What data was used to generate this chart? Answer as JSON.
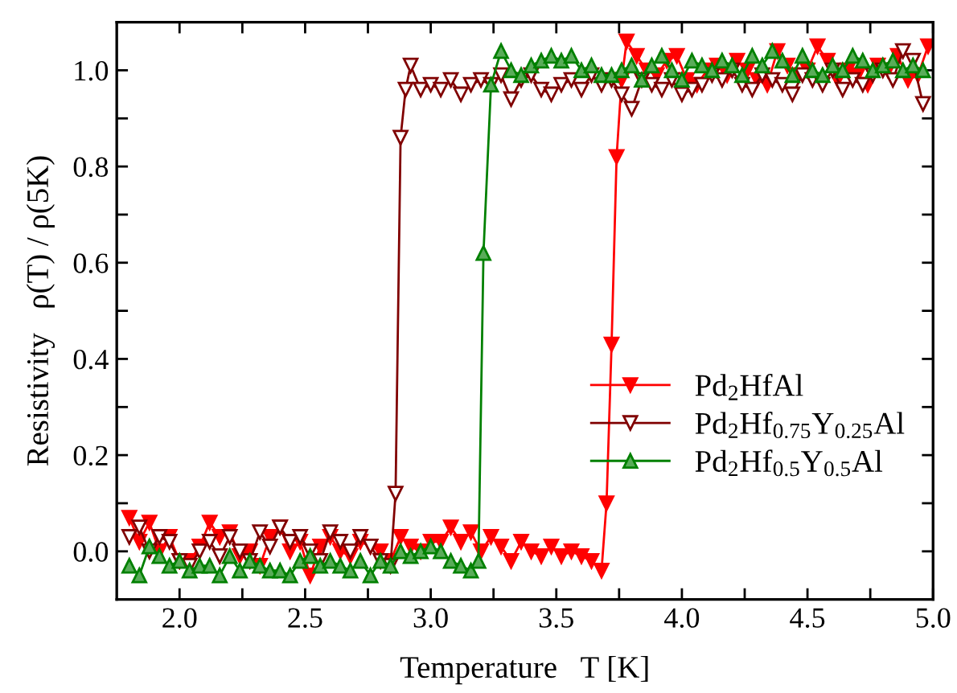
{
  "chart_data": {
    "type": "line",
    "xlabel": "Temperature   T [K]",
    "ylabel": "Resistivity   ρ(T) / ρ(5K)",
    "xlim": [
      1.75,
      5.0
    ],
    "ylim": [
      -0.1,
      1.1
    ],
    "xticks": [
      {
        "value": 2.0,
        "label": "2.0"
      },
      {
        "value": 2.25,
        "label": null
      },
      {
        "value": 2.5,
        "label": "2.5"
      },
      {
        "value": 2.75,
        "label": null
      },
      {
        "value": 3.0,
        "label": "3.0"
      },
      {
        "value": 3.25,
        "label": null
      },
      {
        "value": 3.5,
        "label": "3.5"
      },
      {
        "value": 3.75,
        "label": null
      },
      {
        "value": 4.0,
        "label": "4.0"
      },
      {
        "value": 4.25,
        "label": null
      },
      {
        "value": 4.5,
        "label": "4.5"
      },
      {
        "value": 4.75,
        "label": null
      },
      {
        "value": 5.0,
        "label": "5.0"
      }
    ],
    "yticks": [
      {
        "value": -0.1,
        "label": null
      },
      {
        "value": 0.0,
        "label": "0.0"
      },
      {
        "value": 0.1,
        "label": null
      },
      {
        "value": 0.2,
        "label": "0.2"
      },
      {
        "value": 0.3,
        "label": null
      },
      {
        "value": 0.4,
        "label": "0.4"
      },
      {
        "value": 0.5,
        "label": null
      },
      {
        "value": 0.6,
        "label": "0.6"
      },
      {
        "value": 0.7,
        "label": null
      },
      {
        "value": 0.8,
        "label": "0.8"
      },
      {
        "value": 0.9,
        "label": null
      },
      {
        "value": 1.0,
        "label": "1.0"
      },
      {
        "value": 1.1,
        "label": null
      }
    ],
    "legend": "right",
    "grid": false,
    "series": [
      {
        "name": "Pd$_{2}$HfAl",
        "color": "#ff0000",
        "marker": "triangle_down",
        "x": [
          1.8,
          1.84,
          1.88,
          1.92,
          1.96,
          2.0,
          2.04,
          2.08,
          2.12,
          2.16,
          2.2,
          2.24,
          2.28,
          2.32,
          2.36,
          2.4,
          2.44,
          2.48,
          2.52,
          2.56,
          2.6,
          2.64,
          2.68,
          2.72,
          2.76,
          2.8,
          2.84,
          2.88,
          2.92,
          2.96,
          3.0,
          3.04,
          3.08,
          3.12,
          3.16,
          3.2,
          3.24,
          3.28,
          3.32,
          3.36,
          3.4,
          3.44,
          3.48,
          3.52,
          3.56,
          3.6,
          3.64,
          3.68,
          3.7,
          3.72,
          3.74,
          3.76,
          3.78,
          3.82,
          3.86,
          3.9,
          3.94,
          3.98,
          4.02,
          4.06,
          4.1,
          4.14,
          4.18,
          4.22,
          4.26,
          4.3,
          4.34,
          4.38,
          4.42,
          4.46,
          4.5,
          4.54,
          4.58,
          4.62,
          4.66,
          4.7,
          4.74,
          4.78,
          4.82,
          4.86,
          4.9,
          4.94,
          4.98
        ],
        "values": [
          0.07,
          0.02,
          0.06,
          0.0,
          0.03,
          -0.02,
          -0.02,
          0.01,
          0.06,
          0.03,
          0.04,
          -0.01,
          0.0,
          -0.03,
          0.03,
          0.05,
          0.0,
          0.02,
          -0.05,
          0.01,
          0.03,
          0.0,
          -0.01,
          0.02,
          0.01,
          0.0,
          -0.02,
          0.03,
          0.01,
          0.0,
          0.02,
          0.02,
          0.05,
          0.02,
          0.04,
          0.0,
          0.03,
          0.01,
          -0.02,
          0.02,
          0.0,
          -0.01,
          0.01,
          -0.01,
          0.0,
          -0.01,
          -0.02,
          -0.04,
          0.1,
          0.43,
          0.82,
          0.98,
          1.06,
          1.03,
          1.0,
          0.99,
          1.02,
          1.03,
          0.98,
          0.97,
          1.0,
          1.01,
          0.99,
          1.02,
          1.0,
          0.98,
          0.97,
          1.04,
          1.01,
          0.99,
          1.0,
          1.05,
          1.02,
          0.98,
          1.0,
          0.99,
          0.97,
          1.01,
          1.0,
          1.03,
          0.98,
          0.99,
          1.05
        ]
      },
      {
        "name": "Pd$_{2}$Hf$_{0.75}$Y$_{0.25}$Al",
        "color": "#800000",
        "marker": "triangle_down_open",
        "x": [
          1.8,
          1.84,
          1.88,
          1.92,
          1.96,
          2.0,
          2.04,
          2.08,
          2.12,
          2.16,
          2.2,
          2.24,
          2.28,
          2.32,
          2.36,
          2.4,
          2.44,
          2.48,
          2.52,
          2.56,
          2.6,
          2.64,
          2.68,
          2.72,
          2.76,
          2.8,
          2.84,
          2.86,
          2.88,
          2.9,
          2.92,
          2.96,
          3.0,
          3.04,
          3.08,
          3.12,
          3.16,
          3.2,
          3.24,
          3.28,
          3.32,
          3.36,
          3.4,
          3.44,
          3.48,
          3.52,
          3.56,
          3.6,
          3.64,
          3.68,
          3.72,
          3.76,
          3.8,
          3.84,
          3.88,
          3.92,
          3.96,
          4.0,
          4.04,
          4.08,
          4.12,
          4.16,
          4.2,
          4.24,
          4.28,
          4.32,
          4.36,
          4.4,
          4.44,
          4.48,
          4.52,
          4.56,
          4.6,
          4.64,
          4.68,
          4.72,
          4.76,
          4.8,
          4.84,
          4.88,
          4.92,
          4.96
        ],
        "values": [
          0.03,
          0.05,
          0.0,
          0.03,
          0.02,
          -0.02,
          -0.03,
          0.0,
          0.02,
          -0.01,
          0.03,
          0.0,
          -0.02,
          0.04,
          0.01,
          0.05,
          0.02,
          0.03,
          0.0,
          -0.02,
          0.04,
          0.02,
          0.0,
          0.03,
          0.01,
          -0.02,
          -0.03,
          0.12,
          0.86,
          0.96,
          1.01,
          0.96,
          0.97,
          0.96,
          0.98,
          0.95,
          0.97,
          0.98,
          0.97,
          0.99,
          0.94,
          0.98,
          0.99,
          0.96,
          0.95,
          0.97,
          0.98,
          0.96,
          0.99,
          0.97,
          0.98,
          0.95,
          0.92,
          0.98,
          0.97,
          0.96,
          0.98,
          0.95,
          0.96,
          0.97,
          0.99,
          0.98,
          1.0,
          0.97,
          0.96,
          0.99,
          0.98,
          0.97,
          0.95,
          0.99,
          0.98,
          0.97,
          1.0,
          0.96,
          0.98,
          0.97,
          0.99,
          1.0,
          0.98,
          1.04,
          1.02,
          0.93
        ]
      },
      {
        "name": "Pd$_{2}$Hf$_{0.5}$Y$_{0.5}$Al",
        "color": "#008000",
        "marker": "triangle",
        "x": [
          1.8,
          1.84,
          1.88,
          1.92,
          1.96,
          2.0,
          2.04,
          2.08,
          2.12,
          2.16,
          2.2,
          2.24,
          2.28,
          2.32,
          2.36,
          2.4,
          2.44,
          2.48,
          2.52,
          2.56,
          2.6,
          2.64,
          2.68,
          2.72,
          2.76,
          2.8,
          2.84,
          2.88,
          2.92,
          2.96,
          3.0,
          3.04,
          3.08,
          3.12,
          3.16,
          3.19,
          3.21,
          3.24,
          3.28,
          3.32,
          3.36,
          3.4,
          3.44,
          3.48,
          3.52,
          3.56,
          3.6,
          3.64,
          3.68,
          3.72,
          3.76,
          3.8,
          3.84,
          3.88,
          3.92,
          3.96,
          4.0,
          4.04,
          4.08,
          4.12,
          4.16,
          4.2,
          4.24,
          4.28,
          4.32,
          4.36,
          4.4,
          4.44,
          4.48,
          4.52,
          4.56,
          4.6,
          4.64,
          4.68,
          4.72,
          4.76,
          4.8,
          4.84,
          4.88,
          4.92,
          4.96
        ],
        "values": [
          -0.03,
          -0.05,
          0.01,
          -0.01,
          -0.03,
          -0.02,
          -0.04,
          -0.03,
          -0.03,
          -0.05,
          -0.01,
          -0.04,
          -0.02,
          -0.03,
          -0.04,
          -0.04,
          -0.05,
          -0.02,
          -0.01,
          -0.03,
          -0.02,
          -0.03,
          -0.04,
          -0.02,
          -0.05,
          -0.02,
          -0.03,
          0.0,
          -0.01,
          0.0,
          0.01,
          0.0,
          -0.02,
          -0.03,
          -0.04,
          -0.02,
          0.62,
          0.97,
          1.04,
          1.0,
          0.99,
          1.01,
          1.02,
          1.03,
          1.02,
          1.03,
          1.0,
          1.01,
          0.99,
          0.99,
          1.0,
          1.01,
          0.98,
          1.01,
          1.03,
          1.0,
          0.98,
          1.02,
          1.01,
          1.0,
          1.02,
          1.01,
          0.99,
          1.03,
          1.01,
          1.04,
          1.02,
          0.99,
          1.03,
          1.0,
          0.99,
          1.01,
          1.0,
          1.03,
          1.02,
          1.0,
          1.01,
          1.02,
          1.0,
          1.01,
          1.0
        ]
      }
    ]
  }
}
